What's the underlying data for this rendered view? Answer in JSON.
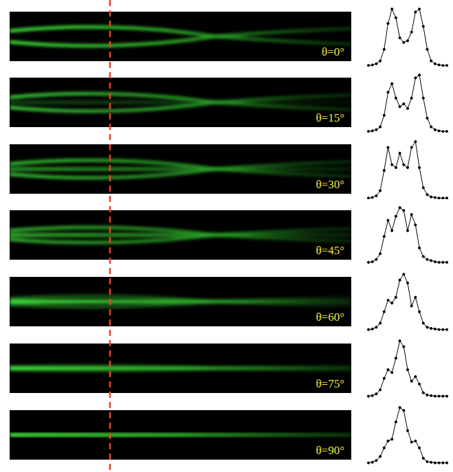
{
  "images": [
    {
      "label": "θ=0°"
    },
    {
      "label": "θ=15°"
    },
    {
      "label": "θ=30°"
    },
    {
      "label": "θ=45°"
    },
    {
      "label": "θ=60°"
    },
    {
      "label": "θ=75°"
    },
    {
      "label": "θ=90°"
    }
  ],
  "chart_data": [
    {
      "type": "line",
      "color": "#000000",
      "marker": "circle",
      "tick_labels": false,
      "ylim": [
        0,
        1.05
      ],
      "values": [
        0.02,
        0.03,
        0.05,
        0.1,
        0.3,
        0.75,
        1.0,
        0.85,
        0.5,
        0.42,
        0.45,
        0.6,
        0.95,
        1.0,
        0.7,
        0.3,
        0.1,
        0.05,
        0.03,
        0.02,
        0.02
      ]
    },
    {
      "type": "line",
      "color": "#000000",
      "marker": "circle",
      "tick_labels": false,
      "ylim": [
        0,
        1.05
      ],
      "values": [
        0.02,
        0.03,
        0.05,
        0.1,
        0.3,
        0.7,
        0.85,
        0.6,
        0.45,
        0.5,
        0.42,
        0.6,
        0.95,
        1.0,
        0.6,
        0.25,
        0.1,
        0.05,
        0.03,
        0.02,
        0.02
      ]
    },
    {
      "type": "line",
      "color": "#000000",
      "marker": "circle",
      "tick_labels": false,
      "ylim": [
        0,
        1.05
      ],
      "values": [
        0.02,
        0.03,
        0.06,
        0.15,
        0.5,
        0.9,
        0.6,
        0.55,
        0.8,
        0.6,
        0.55,
        0.9,
        1.0,
        0.55,
        0.2,
        0.08,
        0.04,
        0.03,
        0.02,
        0.02,
        0.02
      ]
    },
    {
      "type": "line",
      "color": "#000000",
      "marker": "circle",
      "tick_labels": false,
      "ylim": [
        0,
        1.05
      ],
      "values": [
        0.05,
        0.06,
        0.1,
        0.2,
        0.5,
        0.78,
        0.6,
        0.85,
        1.0,
        0.95,
        0.6,
        0.88,
        0.7,
        0.3,
        0.15,
        0.1,
        0.08,
        0.06,
        0.05,
        0.05,
        0.05
      ]
    },
    {
      "type": "line",
      "color": "#000000",
      "marker": "circle",
      "tick_labels": false,
      "ylim": [
        0,
        1.05
      ],
      "values": [
        0.04,
        0.05,
        0.08,
        0.15,
        0.35,
        0.55,
        0.5,
        0.6,
        0.9,
        1.0,
        0.85,
        0.45,
        0.6,
        0.35,
        0.15,
        0.08,
        0.06,
        0.05,
        0.04,
        0.04,
        0.04
      ]
    },
    {
      "type": "line",
      "color": "#000000",
      "marker": "circle",
      "tick_labels": false,
      "ylim": [
        0,
        1.05
      ],
      "values": [
        0.04,
        0.05,
        0.08,
        0.15,
        0.35,
        0.5,
        0.45,
        0.7,
        1.0,
        0.9,
        0.5,
        0.3,
        0.38,
        0.25,
        0.1,
        0.06,
        0.05,
        0.04,
        0.04,
        0.04,
        0.04
      ]
    },
    {
      "type": "line",
      "color": "#000000",
      "marker": "circle",
      "tick_labels": false,
      "ylim": [
        0,
        1.05
      ],
      "values": [
        0.04,
        0.05,
        0.08,
        0.15,
        0.3,
        0.42,
        0.45,
        0.75,
        1.0,
        0.95,
        0.6,
        0.4,
        0.42,
        0.3,
        0.12,
        0.06,
        0.05,
        0.04,
        0.04,
        0.04,
        0.04
      ]
    }
  ]
}
